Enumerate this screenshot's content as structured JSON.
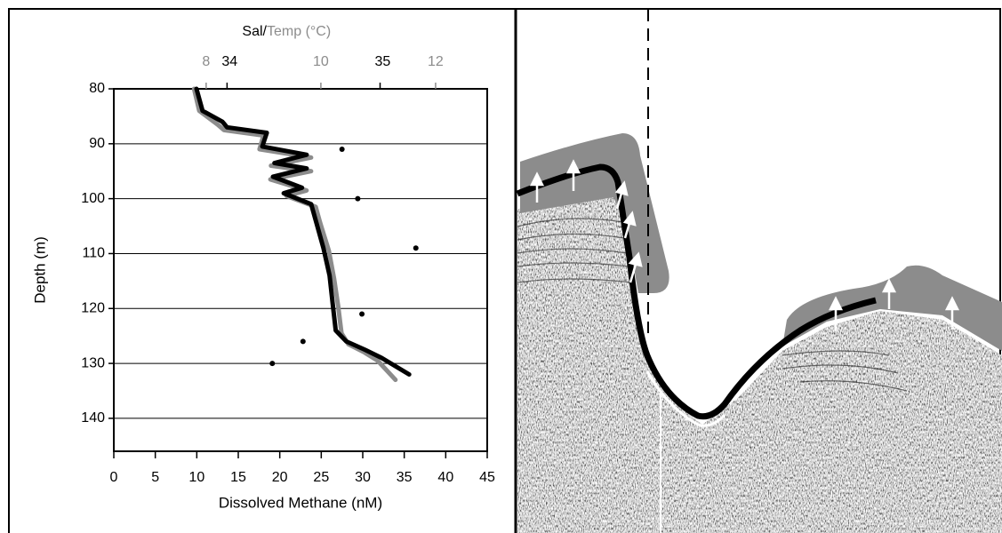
{
  "chart_data": {
    "type": "scatter",
    "x_label": "Dissolved Methane (nM)",
    "y_label": "Depth (m)",
    "title_sal": "Sal/",
    "title_temp": "Temp (°C)",
    "xlim": [
      0,
      45
    ],
    "xticks": [
      0,
      5,
      10,
      15,
      20,
      25,
      30,
      35,
      40,
      45
    ],
    "ylim": [
      80,
      146
    ],
    "yticks": [
      80,
      90,
      100,
      110,
      120,
      130,
      140
    ],
    "y_inverted": true,
    "grid": true,
    "methane": {
      "color": "#000000",
      "x": [
        27.5,
        29.4,
        36.4,
        29.9,
        22.8,
        19.1
      ],
      "y": [
        91,
        100,
        109,
        121,
        126,
        130
      ]
    },
    "salinity": {
      "color": "#000000",
      "xlim": [
        33.26,
        35.7
      ],
      "xticks": [
        34,
        35
      ],
      "x": [
        33.8,
        33.84,
        33.97,
        34.0,
        34.26,
        34.23,
        34.52,
        34.31,
        34.52,
        34.3,
        34.49,
        34.37,
        34.55,
        34.58,
        34.63,
        34.67,
        34.69,
        34.71,
        34.78,
        34.9,
        35.01,
        35.19
      ],
      "y": [
        80,
        84,
        86,
        87,
        88,
        90.5,
        92,
        93.5,
        94.5,
        96,
        98,
        99,
        101,
        104,
        109,
        114,
        119,
        124,
        126,
        127.5,
        129,
        132
      ]
    },
    "temperature": {
      "color": "#8c8c8c",
      "xlim": [
        6.39,
        12.9
      ],
      "xticks": [
        8,
        10,
        12
      ],
      "x": [
        7.79,
        7.88,
        8.2,
        8.31,
        9.0,
        8.93,
        9.83,
        9.13,
        9.83,
        9.12,
        9.75,
        9.4,
        9.91,
        9.99,
        10.14,
        10.23,
        10.3,
        10.36,
        10.48,
        10.76,
        10.99,
        11.3
      ],
      "y": [
        80,
        84,
        86.5,
        87.5,
        88.5,
        91,
        92.5,
        94,
        95,
        96.5,
        98.5,
        99.5,
        101.5,
        104.5,
        109.5,
        114.5,
        119.5,
        124.5,
        126.5,
        128,
        129.5,
        133
      ]
    }
  }
}
